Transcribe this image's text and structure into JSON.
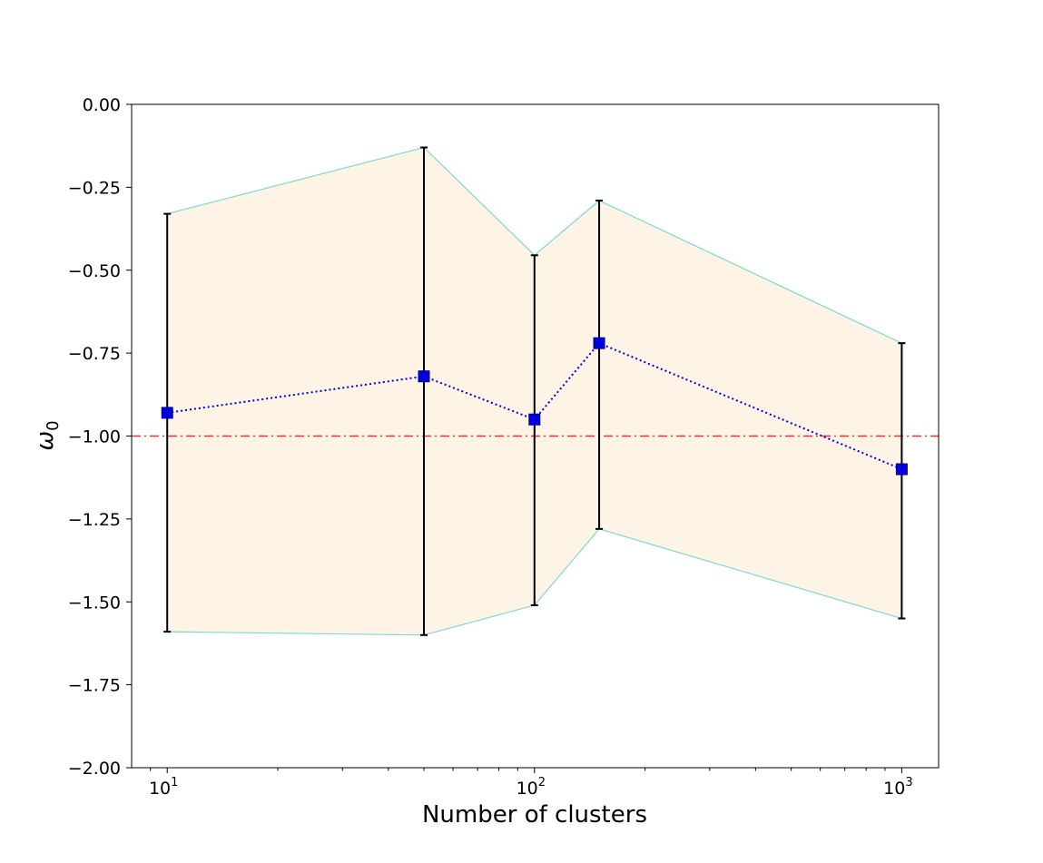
{
  "chart_data": {
    "type": "line",
    "title": "",
    "xlabel": "Number of clusters",
    "ylabel": "ω",
    "ylabel_subscript": "0",
    "xscale": "log",
    "xlim": [
      8,
      1260
    ],
    "ylim": [
      -2.0,
      0.0
    ],
    "x": [
      10,
      50,
      100,
      150,
      1000
    ],
    "y": [
      -0.93,
      -0.82,
      -0.95,
      -0.72,
      -1.1
    ],
    "lower": [
      -1.59,
      -1.6,
      -1.51,
      -1.28,
      -1.55
    ],
    "upper": [
      -0.33,
      -0.13,
      -0.455,
      -0.29,
      -0.72
    ],
    "reference_line": {
      "y": -1.0,
      "color": "#e8372a",
      "style": "dashdot"
    },
    "band": {
      "fill": "#fdf4e6",
      "edge": "#7fd8d0"
    },
    "series_color": "#0000dd",
    "errorbar_color": "#000000",
    "y_ticks": [
      {
        "value": 0.0,
        "label": "0.00"
      },
      {
        "value": -0.25,
        "label": "−0.25"
      },
      {
        "value": -0.5,
        "label": "−0.50"
      },
      {
        "value": -0.75,
        "label": "−0.75"
      },
      {
        "value": -1.0,
        "label": "−1.00"
      },
      {
        "value": -1.25,
        "label": "−1.25"
      },
      {
        "value": -1.5,
        "label": "−1.50"
      },
      {
        "value": -1.75,
        "label": "−1.75"
      },
      {
        "value": -2.0,
        "label": "−2.00"
      }
    ],
    "x_ticks": [
      {
        "value": 10,
        "base": "10",
        "exp": "1"
      },
      {
        "value": 100,
        "base": "10",
        "exp": "2"
      },
      {
        "value": 1000,
        "base": "10",
        "exp": "3"
      }
    ]
  }
}
